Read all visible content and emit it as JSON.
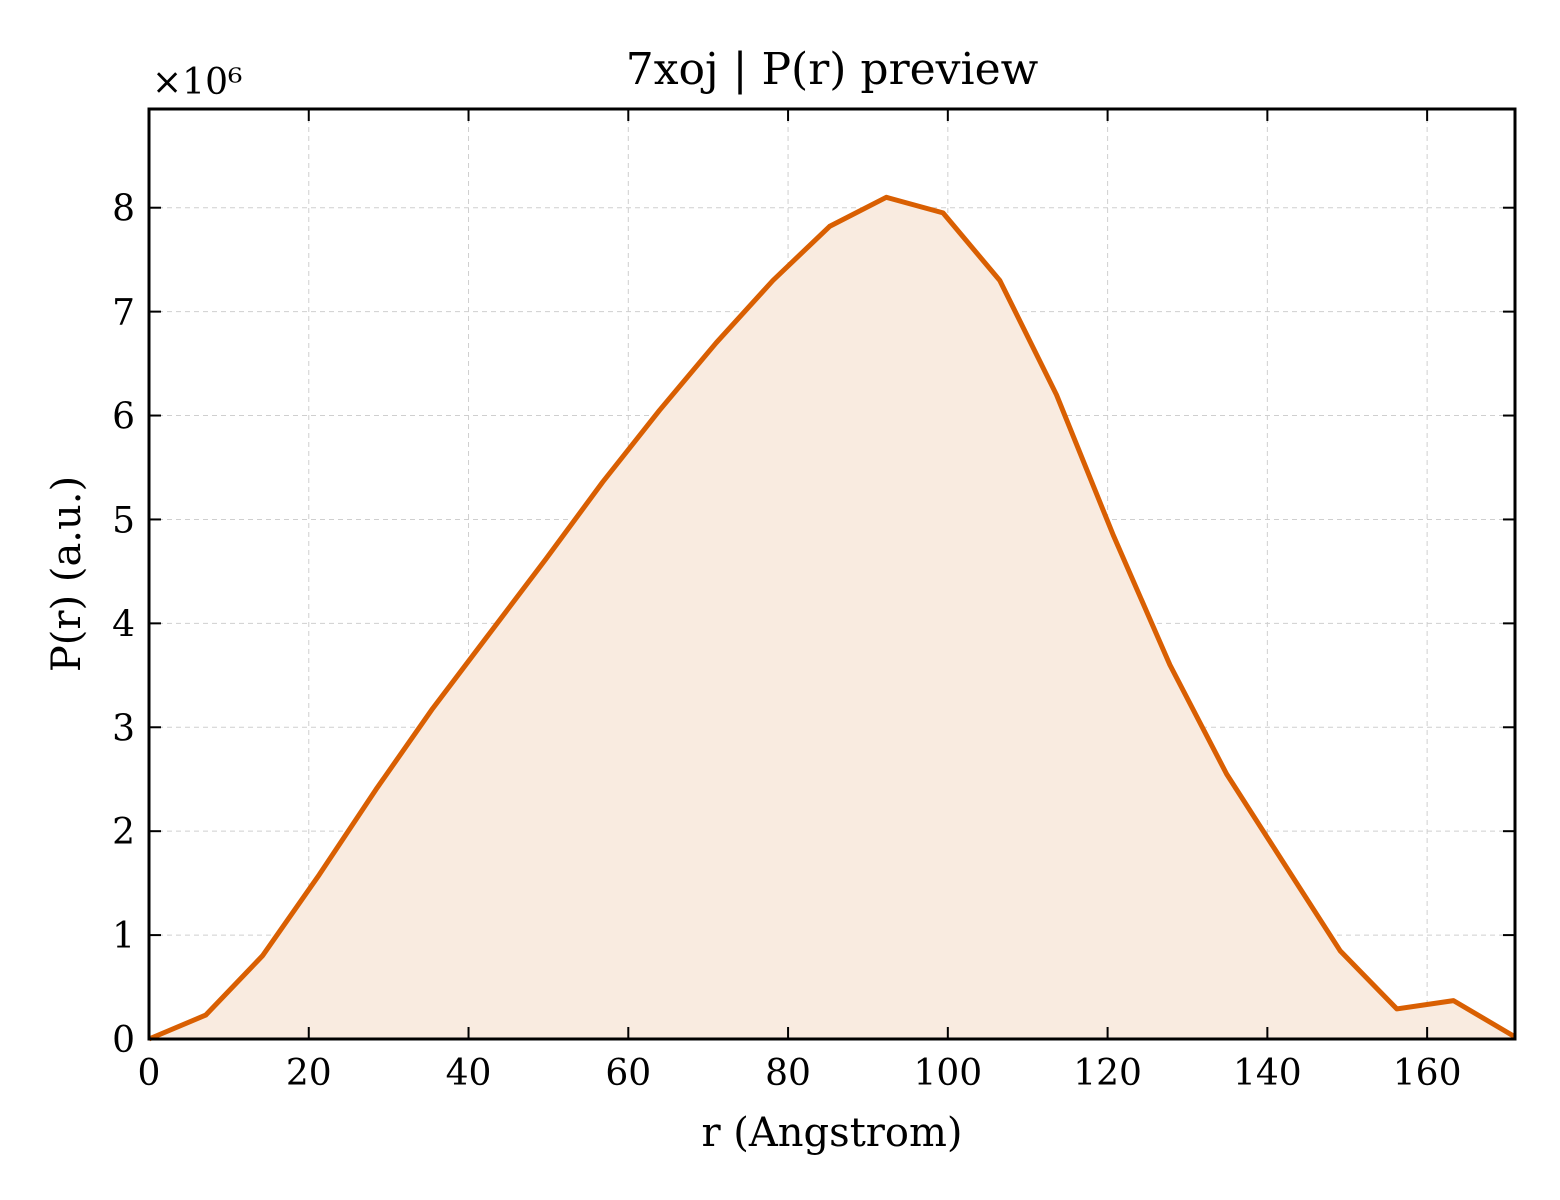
{
  "chart_data": {
    "type": "area",
    "title": "7xoj | P(r) preview",
    "xlabel": "r (Angstrom)",
    "ylabel": "P(r) (a.u.)",
    "y_offset_text": "×10⁶",
    "xlim": [
      0,
      171
    ],
    "ylim": [
      0,
      8.95
    ],
    "xticks": [
      0,
      20,
      40,
      60,
      80,
      100,
      120,
      140,
      160
    ],
    "yticks": [
      0,
      1,
      2,
      3,
      4,
      5,
      6,
      7,
      8
    ],
    "grid": true,
    "line_color": "#d95f02",
    "fill_color": "#f9ebe0",
    "x": [
      0,
      7.1,
      14.2,
      21.3,
      28.4,
      35.5,
      42.6,
      49.7,
      56.8,
      63.9,
      71.0,
      78.1,
      85.2,
      92.3,
      99.4,
      106.5,
      113.6,
      120.7,
      127.8,
      134.9,
      142.0,
      149.1,
      156.2,
      163.3,
      171.0
    ],
    "y": [
      0.0,
      0.23,
      0.8,
      1.58,
      2.4,
      3.18,
      3.9,
      4.62,
      5.36,
      6.05,
      6.7,
      7.3,
      7.82,
      8.1,
      7.95,
      7.3,
      6.2,
      4.85,
      3.6,
      2.55,
      1.7,
      0.85,
      0.29,
      0.37,
      0.02
    ]
  }
}
